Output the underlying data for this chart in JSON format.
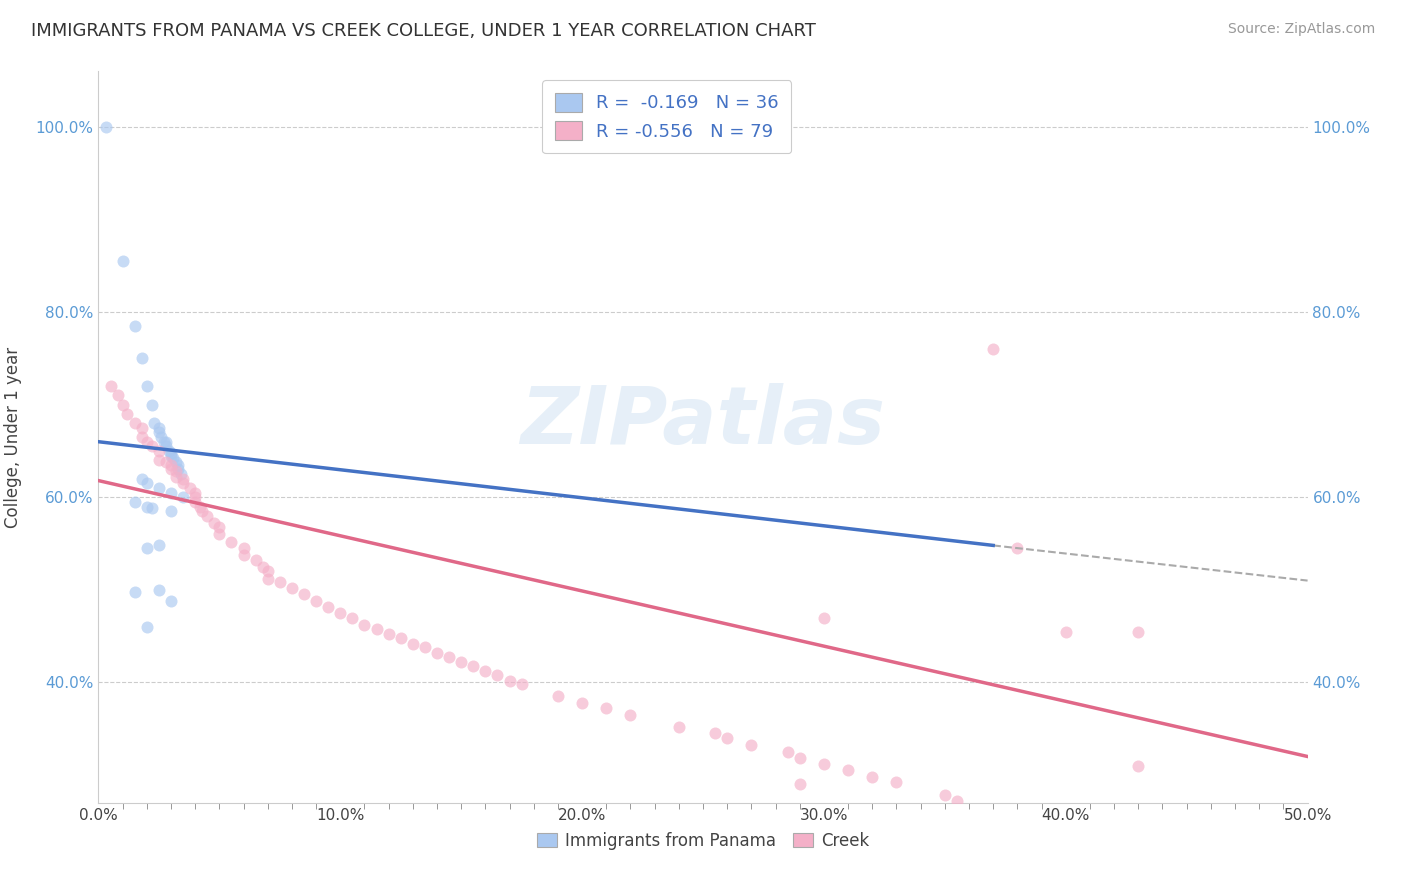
{
  "title": "IMMIGRANTS FROM PANAMA VS CREEK COLLEGE, UNDER 1 YEAR CORRELATION CHART",
  "source": "Source: ZipAtlas.com",
  "ylabel": "College, Under 1 year",
  "xlim": [
    0.0,
    0.5
  ],
  "ylim": [
    0.27,
    1.06
  ],
  "xtick_labels": [
    "0.0%",
    "",
    "",
    "",
    "",
    "",
    "",
    "",
    "",
    "",
    "10.0%",
    "",
    "",
    "",
    "",
    "",
    "",
    "",
    "",
    "",
    "20.0%",
    "",
    "",
    "",
    "",
    "",
    "",
    "",
    "",
    "",
    "30.0%",
    "",
    "",
    "",
    "",
    "",
    "",
    "",
    "",
    "",
    "40.0%",
    "",
    "",
    "",
    "",
    "",
    "",
    "",
    "",
    "",
    "50.0%"
  ],
  "xtick_vals": [
    0.0,
    0.01,
    0.02,
    0.03,
    0.04,
    0.05,
    0.06,
    0.07,
    0.08,
    0.09,
    0.1,
    0.11,
    0.12,
    0.13,
    0.14,
    0.15,
    0.16,
    0.17,
    0.18,
    0.19,
    0.2,
    0.21,
    0.22,
    0.23,
    0.24,
    0.25,
    0.26,
    0.27,
    0.28,
    0.29,
    0.3,
    0.31,
    0.32,
    0.33,
    0.34,
    0.35,
    0.36,
    0.37,
    0.38,
    0.39,
    0.4,
    0.41,
    0.42,
    0.43,
    0.44,
    0.45,
    0.46,
    0.47,
    0.48,
    0.49,
    0.5
  ],
  "xtick_major_labels": [
    "0.0%",
    "10.0%",
    "20.0%",
    "30.0%",
    "40.0%",
    "50.0%"
  ],
  "xtick_major_vals": [
    0.0,
    0.1,
    0.2,
    0.3,
    0.4,
    0.5
  ],
  "ytick_labels": [
    "40.0%",
    "60.0%",
    "80.0%",
    "100.0%"
  ],
  "ytick_vals": [
    0.4,
    0.6,
    0.8,
    1.0
  ],
  "legend_R_blue": "R =  -0.169",
  "legend_N_blue": "N = 36",
  "legend_R_pink": "R = -0.556",
  "legend_N_pink": "N = 79",
  "blue_scatter_x": [
    0.003,
    0.01,
    0.015,
    0.018,
    0.02,
    0.022,
    0.023,
    0.025,
    0.025,
    0.026,
    0.027,
    0.028,
    0.028,
    0.029,
    0.03,
    0.03,
    0.031,
    0.032,
    0.033,
    0.033,
    0.034,
    0.018,
    0.02,
    0.025,
    0.03,
    0.035,
    0.015,
    0.02,
    0.022,
    0.03,
    0.025,
    0.02,
    0.025,
    0.015,
    0.03,
    0.02
  ],
  "blue_scatter_y": [
    1.0,
    0.855,
    0.785,
    0.75,
    0.72,
    0.7,
    0.68,
    0.675,
    0.67,
    0.665,
    0.66,
    0.66,
    0.655,
    0.65,
    0.648,
    0.645,
    0.642,
    0.638,
    0.635,
    0.63,
    0.625,
    0.62,
    0.615,
    0.61,
    0.605,
    0.6,
    0.595,
    0.59,
    0.588,
    0.585,
    0.548,
    0.545,
    0.5,
    0.498,
    0.488,
    0.46
  ],
  "pink_scatter_x": [
    0.005,
    0.008,
    0.01,
    0.012,
    0.015,
    0.018,
    0.018,
    0.02,
    0.022,
    0.025,
    0.025,
    0.028,
    0.03,
    0.03,
    0.032,
    0.032,
    0.035,
    0.035,
    0.038,
    0.04,
    0.04,
    0.04,
    0.042,
    0.043,
    0.045,
    0.048,
    0.05,
    0.05,
    0.055,
    0.06,
    0.06,
    0.065,
    0.068,
    0.07,
    0.07,
    0.075,
    0.08,
    0.085,
    0.09,
    0.095,
    0.1,
    0.105,
    0.11,
    0.115,
    0.12,
    0.125,
    0.13,
    0.135,
    0.14,
    0.145,
    0.15,
    0.155,
    0.16,
    0.165,
    0.17,
    0.175,
    0.19,
    0.2,
    0.21,
    0.22,
    0.24,
    0.255,
    0.26,
    0.27,
    0.285,
    0.29,
    0.3,
    0.31,
    0.32,
    0.33,
    0.35,
    0.355,
    0.37,
    0.38,
    0.4,
    0.3,
    0.43,
    0.43,
    0.29
  ],
  "pink_scatter_y": [
    0.72,
    0.71,
    0.7,
    0.69,
    0.68,
    0.675,
    0.665,
    0.66,
    0.655,
    0.65,
    0.64,
    0.638,
    0.635,
    0.63,
    0.628,
    0.622,
    0.62,
    0.615,
    0.61,
    0.605,
    0.6,
    0.595,
    0.59,
    0.585,
    0.58,
    0.572,
    0.568,
    0.56,
    0.552,
    0.545,
    0.538,
    0.532,
    0.525,
    0.52,
    0.512,
    0.508,
    0.502,
    0.495,
    0.488,
    0.482,
    0.475,
    0.47,
    0.462,
    0.458,
    0.452,
    0.448,
    0.442,
    0.438,
    0.432,
    0.428,
    0.422,
    0.418,
    0.412,
    0.408,
    0.402,
    0.398,
    0.385,
    0.378,
    0.372,
    0.365,
    0.352,
    0.345,
    0.34,
    0.332,
    0.325,
    0.318,
    0.312,
    0.305,
    0.298,
    0.292,
    0.278,
    0.272,
    0.76,
    0.545,
    0.455,
    0.47,
    0.455,
    0.31,
    0.29
  ],
  "blue_line_x": [
    0.0,
    0.37
  ],
  "blue_line_y": [
    0.66,
    0.548
  ],
  "pink_line_x": [
    0.0,
    0.5
  ],
  "pink_line_y": [
    0.618,
    0.32
  ],
  "dash_line_x": [
    0.37,
    0.5
  ],
  "dash_line_y": [
    0.548,
    0.51
  ],
  "blue_color": "#aac8f0",
  "pink_color": "#f4b0c8",
  "blue_line_color": "#4472c4",
  "pink_line_color": "#e06888",
  "dash_color": "#aaaaaa",
  "scatter_alpha": 0.65,
  "scatter_size": 75,
  "watermark_text": "ZIPatlas",
  "background_color": "#ffffff",
  "grid_color": "#cccccc",
  "label1": "Immigrants from Panama",
  "label2": "Creek"
}
